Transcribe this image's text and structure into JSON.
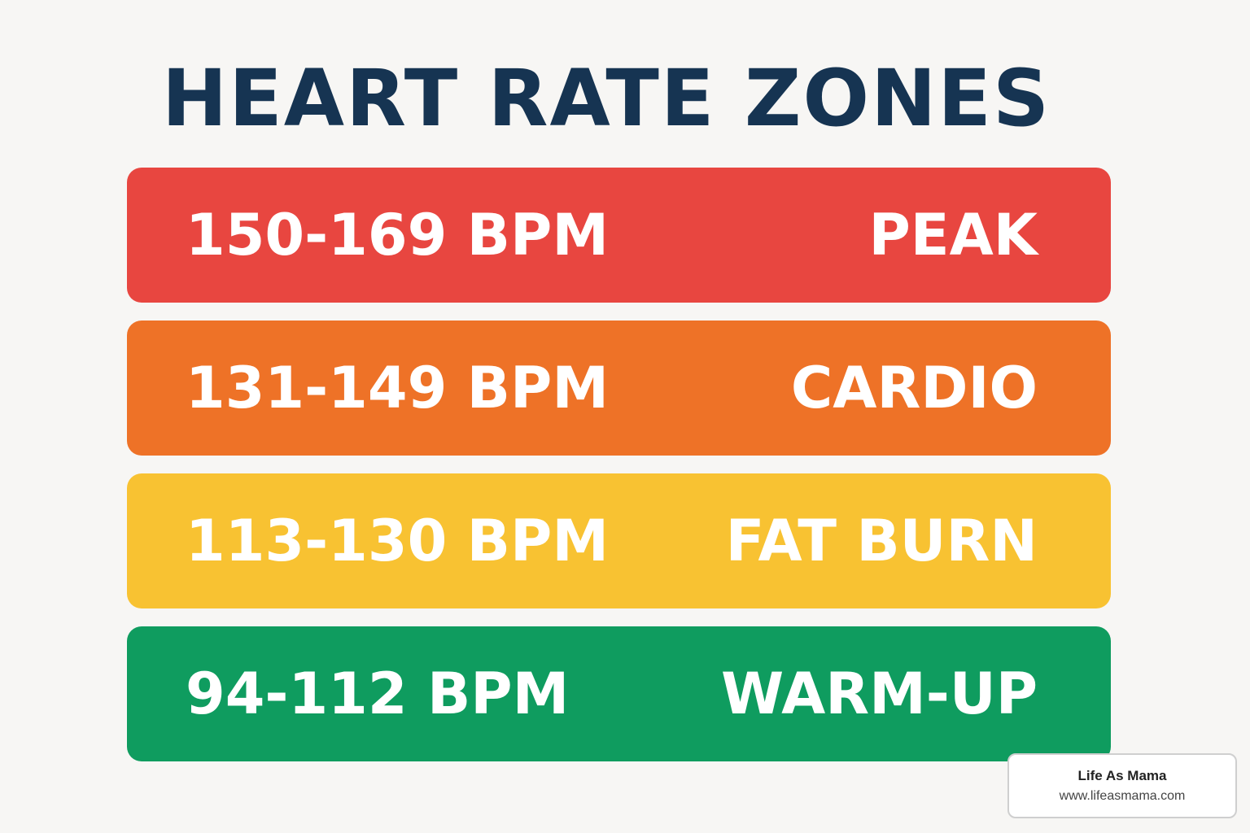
{
  "title": "HEART RATE ZONES",
  "zones": [
    {
      "range": "150-169 BPM",
      "name": "PEAK",
      "color": "#e84640"
    },
    {
      "range": "131-149 BPM",
      "name": "CARDIO",
      "color": "#ee7227"
    },
    {
      "range": "113-130 BPM",
      "name": "FAT BURN",
      "color": "#f8c232"
    },
    {
      "range": "94-112 BPM",
      "name": "WARM-UP",
      "color": "#0f9c5f"
    }
  ],
  "source": {
    "name": "Life As Mama",
    "url": "www.lifeasmama.com"
  }
}
